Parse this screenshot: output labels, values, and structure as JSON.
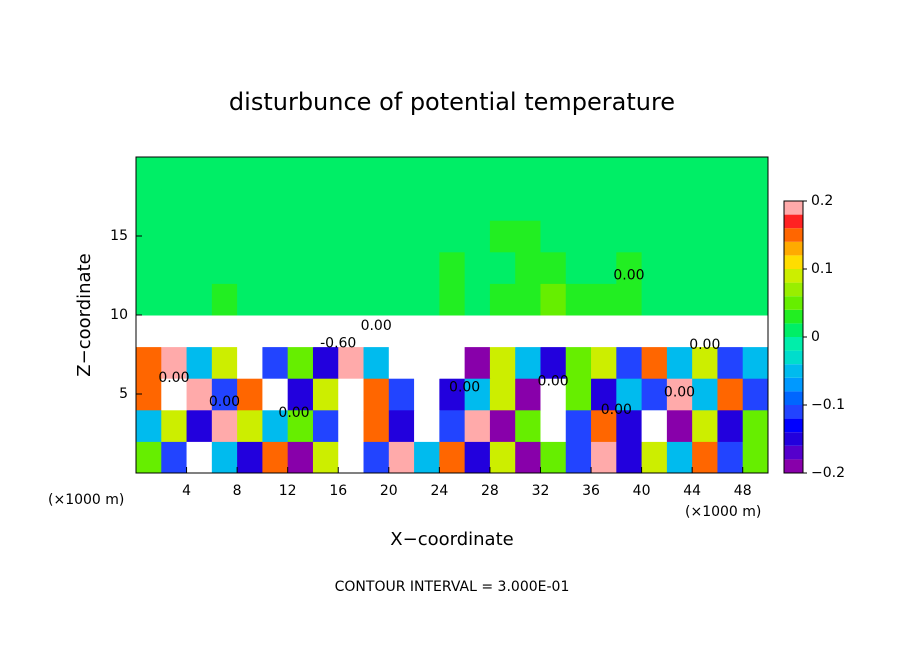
{
  "chart_data": {
    "type": "heatmap",
    "title": "disturbunce of potential temperature",
    "xlabel": "X−coordinate",
    "ylabel": "Z−coordinate",
    "xunit": "(×1000 m)",
    "yunit": "(×1000 m)",
    "footnote": "CONTOUR INTERVAL = 3.000E-01",
    "xlim": [
      0,
      50
    ],
    "ylim": [
      0,
      20
    ],
    "xticks": [
      4,
      8,
      12,
      16,
      20,
      24,
      28,
      32,
      36,
      40,
      44,
      48
    ],
    "yticks": [
      5,
      10,
      15
    ],
    "x": [
      1,
      3,
      5,
      7,
      9,
      11,
      13,
      15,
      17,
      19,
      21,
      23,
      25,
      27,
      29,
      31,
      33,
      35,
      37,
      39,
      41,
      43,
      45,
      47,
      49
    ],
    "z": [
      1,
      3,
      5,
      7,
      9,
      11,
      13,
      15,
      17,
      19
    ],
    "values": [
      [
        0.05,
        -0.1,
        0.3,
        -0.05,
        -0.15,
        0.15,
        -0.2,
        0.1,
        0.3,
        -0.1,
        0.2,
        -0.05,
        0.15,
        -0.15,
        0.1,
        -0.2,
        0.05,
        -0.1,
        0.2,
        -0.15,
        0.1,
        -0.05,
        0.15,
        -0.1,
        0.05
      ],
      [
        -0.05,
        0.1,
        -0.15,
        0.2,
        0.1,
        -0.05,
        0.05,
        -0.1,
        0.3,
        0.15,
        -0.15,
        0.3,
        -0.1,
        0.2,
        -0.2,
        0.05,
        0.3,
        -0.1,
        0.15,
        -0.15,
        0.3,
        -0.2,
        0.1,
        -0.15,
        0.05
      ],
      [
        0.15,
        0.3,
        0.2,
        -0.1,
        0.15,
        0.3,
        -0.15,
        0.1,
        0.3,
        0.15,
        -0.1,
        0.3,
        -0.15,
        -0.05,
        0.1,
        -0.2,
        0.3,
        0.05,
        -0.15,
        -0.05,
        -0.1,
        0.2,
        -0.05,
        0.15,
        -0.1
      ],
      [
        0.15,
        0.2,
        -0.05,
        0.1,
        0.3,
        -0.1,
        0.05,
        -0.15,
        0.2,
        -0.05,
        0.3,
        0.3,
        0.3,
        -0.2,
        0.1,
        -0.05,
        -0.15,
        0.05,
        0.1,
        -0.1,
        0.15,
        -0.05,
        0.1,
        -0.1,
        -0.05
      ],
      [
        0.3,
        0.3,
        0.3,
        0.3,
        0.3,
        0.3,
        0.3,
        0.3,
        0.3,
        0.3,
        0.3,
        0.3,
        0.3,
        0.3,
        0.3,
        0.3,
        0.3,
        0.3,
        0.3,
        0.3,
        0.3,
        0.3,
        0.3,
        0.3,
        0.3
      ],
      [
        0.015,
        0.015,
        0.015,
        0.025,
        0.015,
        0.005,
        0.005,
        0.005,
        0.005,
        0.005,
        0.015,
        0.015,
        0.025,
        0.015,
        0.025,
        0.035,
        0.045,
        0.025,
        0.035,
        0.025,
        0.015,
        0.015,
        0.015,
        0.005,
        0.005
      ],
      [
        0.015,
        0.015,
        0.005,
        0.005,
        0.005,
        0.005,
        0.005,
        0.005,
        0.005,
        0.005,
        0.015,
        0.015,
        0.025,
        0.015,
        0.015,
        0.025,
        0.035,
        0.015,
        0.015,
        0.025,
        0.015,
        0.015,
        0.005,
        0.005,
        0.005
      ],
      [
        0.005,
        0.005,
        0.005,
        0.005,
        0.005,
        0.005,
        0.005,
        0.005,
        0.005,
        0.005,
        0.015,
        0.015,
        0.015,
        0.015,
        0.025,
        0.025,
        0.015,
        0.015,
        0.015,
        0.015,
        0.015,
        0.015,
        0.005,
        0.005,
        0.005
      ],
      [
        0.005,
        0.005,
        0.005,
        0.005,
        0.005,
        0.005,
        0.005,
        0.005,
        0.005,
        0.005,
        0.015,
        0.015,
        0.015,
        0.015,
        0.015,
        0.015,
        0.015,
        0.015,
        0.015,
        0.015,
        0.015,
        0.015,
        0.015,
        0.015,
        0.015
      ],
      [
        0.005,
        0.005,
        0.005,
        0.005,
        0.005,
        0.005,
        0.005,
        0.005,
        0.005,
        0.005,
        0.005,
        0.015,
        0.015,
        0.015,
        0.015,
        0.015,
        0.015,
        0.015,
        0.015,
        0.015,
        0.015,
        0.015,
        0.015,
        0.015,
        0.015
      ]
    ],
    "colorbar": {
      "levels": [
        -0.2,
        -0.18,
        -0.16,
        -0.14,
        -0.12,
        -0.1,
        -0.08,
        -0.06,
        -0.04,
        -0.02,
        0,
        0.02,
        0.04,
        0.06,
        0.08,
        0.1,
        0.12,
        0.14,
        0.16,
        0.18,
        0.2
      ],
      "colors": [
        "#8800aa",
        "#5500cc",
        "#2200dd",
        "#0000ff",
        "#2244ff",
        "#0066ff",
        "#0099ff",
        "#00bbee",
        "#00ddcc",
        "#00eeaa",
        "#00ee66",
        "#22ee22",
        "#66ee00",
        "#99ee00",
        "#ccee00",
        "#ffdd00",
        "#ffaa00",
        "#ff6600",
        "#ff2222",
        "#ffaaaa"
      ],
      "over_color": "#ffffff",
      "ticks": [
        {
          "value": -0.2,
          "label": "−0.2"
        },
        {
          "value": -0.1,
          "label": "−0.1"
        },
        0,
        0.1,
        0.2
      ]
    },
    "annotations": [
      {
        "text": "0.00",
        "x": 19,
        "y": 9.3
      },
      {
        "text": "-0.60",
        "x": 16,
        "y": 8.2
      },
      {
        "text": "0.00",
        "x": 3,
        "y": 6
      },
      {
        "text": "0.00",
        "x": 7,
        "y": 4.5
      },
      {
        "text": "0.00",
        "x": 12.5,
        "y": 3.8
      },
      {
        "text": "0.00",
        "x": 26,
        "y": 5.4
      },
      {
        "text": "0.00",
        "x": 33,
        "y": 5.8
      },
      {
        "text": "0.00",
        "x": 38,
        "y": 4
      },
      {
        "text": "0.00",
        "x": 43,
        "y": 5.1
      },
      {
        "text": "0.00",
        "x": 45,
        "y": 8.1
      },
      {
        "text": "0.00",
        "x": 39,
        "y": 12.5
      }
    ]
  }
}
